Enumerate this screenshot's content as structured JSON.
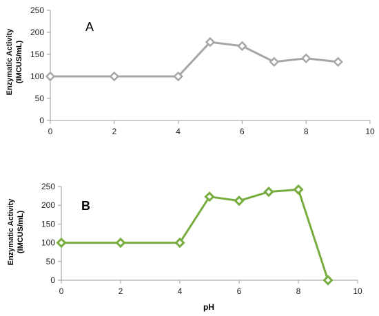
{
  "chart_data": [
    {
      "type": "line",
      "panel_label": "A",
      "ylabel": [
        "Enzymatic Activity",
        "(IMCUS/mL)"
      ],
      "xlabel": "",
      "x": [
        0,
        2,
        4,
        5,
        6,
        7,
        8,
        9
      ],
      "series": [
        {
          "values": [
            100,
            100,
            100,
            178,
            169,
            133,
            141,
            133
          ],
          "color": "#a6a6a6"
        }
      ],
      "xlim": [
        0,
        10
      ],
      "ylim": [
        0,
        250
      ],
      "xticks": [
        "0",
        "2",
        "4",
        "6",
        "8",
        "10"
      ],
      "yticks": [
        "0",
        "50",
        "100",
        "150",
        "200",
        "250"
      ],
      "grid": false,
      "marker": "diamond-open"
    },
    {
      "type": "line",
      "panel_label": "B",
      "ylabel": [
        "Enzymatic  Activity",
        "(IMCUS/mL)"
      ],
      "xlabel": "pH",
      "x": [
        0,
        2,
        4,
        5,
        6,
        7,
        8,
        9
      ],
      "series": [
        {
          "values": [
            100,
            100,
            100,
            223,
            212,
            236,
            242,
            0
          ],
          "color": "#77ac3e"
        }
      ],
      "xlim": [
        0,
        10
      ],
      "ylim": [
        0,
        250
      ],
      "xticks": [
        "0",
        "2",
        "4",
        "6",
        "8",
        "10"
      ],
      "yticks": [
        "0",
        "50",
        "100",
        "150",
        "200",
        "250"
      ],
      "grid": false,
      "marker": "diamond-open"
    }
  ]
}
